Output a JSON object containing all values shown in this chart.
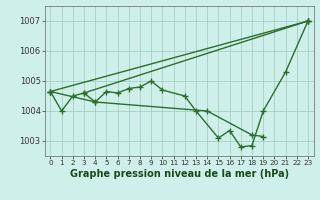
{
  "xlabel": "Graphe pression niveau de la mer (hPa)",
  "bg_color": "#cff0ea",
  "grid_color": "#99ccbb",
  "line_color": "#2d6e2d",
  "x_ticks": [
    0,
    1,
    2,
    3,
    4,
    5,
    6,
    7,
    8,
    9,
    10,
    11,
    12,
    13,
    14,
    15,
    16,
    17,
    18,
    19,
    20,
    21,
    22,
    23
  ],
  "ylim": [
    1002.5,
    1007.5
  ],
  "y_ticks": [
    1003,
    1004,
    1005,
    1006,
    1007
  ],
  "series": [
    {
      "x": [
        0,
        1,
        2,
        3,
        4,
        5,
        6,
        7,
        8,
        9,
        10,
        12,
        13,
        15,
        16,
        17,
        18,
        19,
        21,
        23
      ],
      "y": [
        1004.65,
        1004.0,
        1004.5,
        1004.6,
        1004.3,
        1004.65,
        1004.6,
        1004.75,
        1004.8,
        1005.0,
        1004.7,
        1004.5,
        1004.0,
        1003.1,
        1003.35,
        1002.8,
        1002.85,
        1004.0,
        1005.3,
        1007.0
      ]
    },
    {
      "x": [
        0,
        23
      ],
      "y": [
        1004.65,
        1007.0
      ]
    },
    {
      "x": [
        0,
        4,
        14,
        18,
        19
      ],
      "y": [
        1004.65,
        1004.3,
        1004.0,
        1003.2,
        1003.15
      ]
    },
    {
      "x": [
        3,
        23
      ],
      "y": [
        1004.6,
        1007.0
      ]
    }
  ]
}
